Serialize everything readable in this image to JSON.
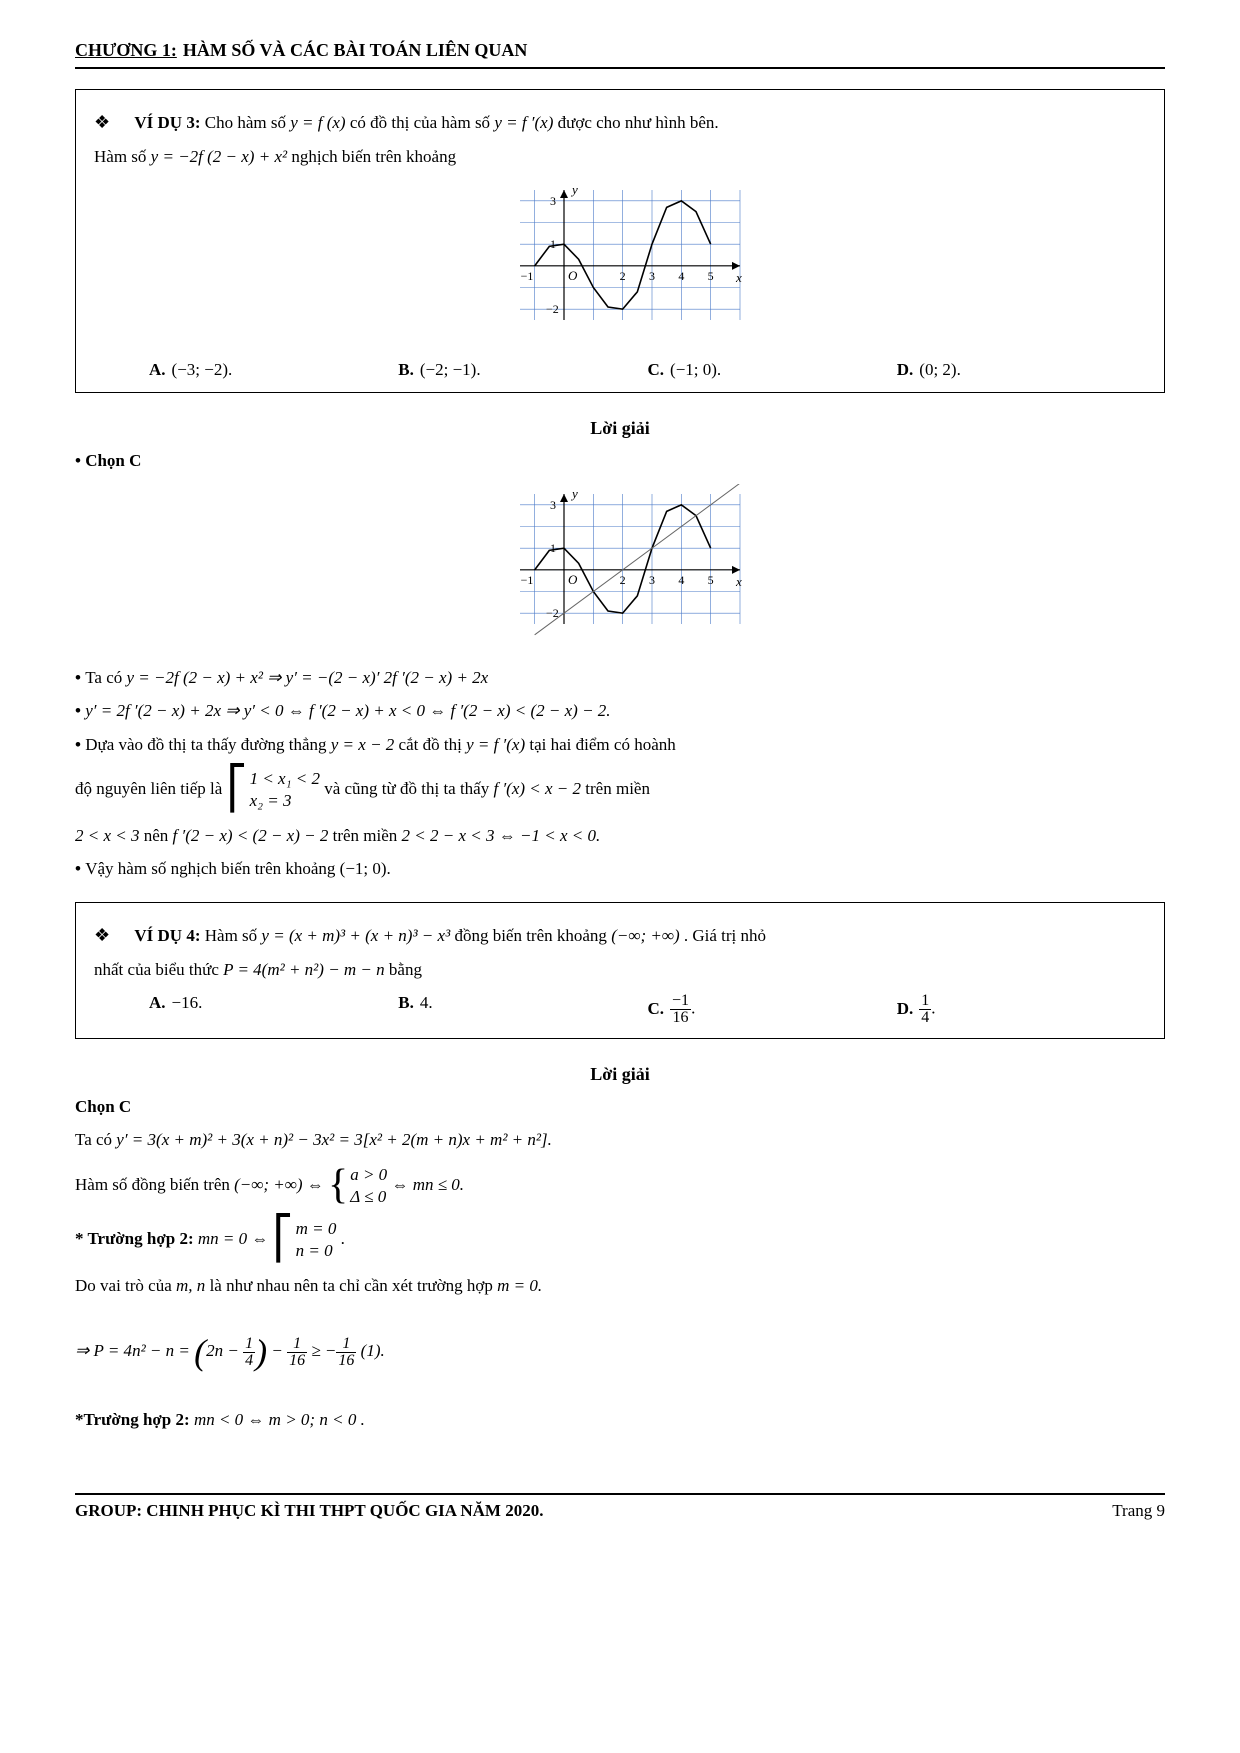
{
  "header": {
    "chapter_label": "CHƯƠNG 1:",
    "chapter_title": "HÀM SỐ VÀ CÁC BÀI TOÁN LIÊN QUAN"
  },
  "ex3": {
    "label": "VÍ DỤ 3:",
    "intro1": "Cho hàm số ",
    "eq1": "y = f (x)",
    "intro2": " có đồ thị của hàm số ",
    "eq2": "y = f ′(x)",
    "intro3": " được cho như hình bên.",
    "line2a": "Hàm số ",
    "eq3": "y = −2f (2 − x) + x²",
    "line2b": " nghịch biến trên khoảng",
    "optA": "(−3; −2).",
    "optB": "(−2; −1).",
    "optC": "(−1; 0).",
    "optD": "(0; 2)."
  },
  "sol3": {
    "loigia": "Lời giải",
    "chon": "Chọn C",
    "l1a": "Ta có ",
    "l1b": "y = −2f (2 − x) + x² ⇒ y′ = −(2 − x)′ 2f ′(2 − x) + 2x",
    "l2": "y′ = 2f ′(2 − x) + 2x  ⇒ y′ < 0 ⇔ f ′(2 − x) + x < 0 ⇔ f ′(2 − x) < (2 − x) − 2.",
    "l3a": "Dựa vào đồ thị ta thấy đường thẳng ",
    "l3b": "y = x − 2",
    "l3c": " cắt đồ thị ",
    "l3d": "y = f ′(x)",
    "l3e": " tại hai điểm có hoành",
    "l4a": "độ nguyên liên tiếp là ",
    "l4b1": "1 < x₁ < 2",
    "l4b2": "x₂ = 3",
    "l4c": " và cũng từ đồ thị ta thấy ",
    "l4d": "f ′(x) < x − 2",
    "l4e": " trên miền",
    "l5a": "2 < x < 3",
    "l5b": " nên ",
    "l5c": "f ′(2 − x) < (2 − x) − 2",
    "l5d": " trên miền ",
    "l5e": "2 < 2 − x < 3 ⇔ −1 < x < 0.",
    "l6": "Vậy hàm số nghịch biến trên khoảng (−1; 0)."
  },
  "ex4": {
    "label": "VÍ DỤ 4:",
    "intro1": "Hàm số ",
    "eq1": "y = (x + m)³ + (x + n)³ − x³",
    "intro2": " đồng biến trên khoảng ",
    "eq2": "(−∞; +∞)",
    "intro3": ". Giá trị nhỏ",
    "line2a": "nhất của biểu thức ",
    "eq3": "P = 4(m² + n²) − m − n",
    "line2b": " bằng",
    "optA": "−16.",
    "optB": "4.",
    "optC_num": "−1",
    "optC_den": "16",
    "optD_num": "1",
    "optD_den": "4"
  },
  "sol4": {
    "loigia": "Lời giải",
    "chon": "Chọn C",
    "l1a": "Ta có ",
    "l1b": "y′ = 3(x + m)² + 3(x + n)² − 3x² = 3[x² + 2(m + n)x + m² + n²].",
    "l2a": "Hàm số đồng biến trên ",
    "l2b": "(−∞; +∞) ⇔ ",
    "l2c1": "a > 0",
    "l2c2": "Δ ≤ 0",
    "l2d": " ⇔ mn ≤ 0.",
    "l3a": "* Trường hợp 2: ",
    "l3b": "mn = 0 ⇔ ",
    "l3c1": "m = 0",
    "l3c2": "n = 0",
    "l3d": ".",
    "l4a": "Do vai trò của ",
    "l4b": "m, n",
    "l4c": " là như nhau nên ta chỉ cần xét trường hợp ",
    "l4d": "m = 0.",
    "l5": "⇒ P = 4n² − n = (2n − ¼) − 1/16 ≥ −1/16 (1).",
    "l6a": "*Trường hợp 2: ",
    "l6b": "mn < 0 ⇔ m > 0; n < 0 ."
  },
  "graph1": {
    "xmin": -1.5,
    "xmax": 6,
    "ymin": -2.5,
    "ymax": 3.5,
    "grid_color": "#4a7ac8",
    "curve_color": "#000000"
  },
  "footer": {
    "left": "GROUP: CHINH PHỤC KÌ THI THPT QUỐC GIA NĂM 2020.",
    "right": "Trang 9"
  }
}
